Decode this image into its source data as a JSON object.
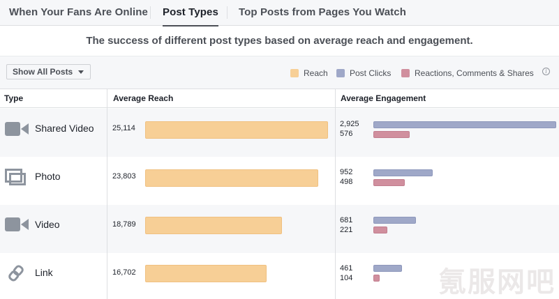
{
  "tabs": [
    {
      "label": "When Your Fans Are Online",
      "active": false
    },
    {
      "label": "Post Types",
      "active": true
    },
    {
      "label": "Top Posts from Pages You Watch",
      "active": false
    }
  ],
  "subtitle": "The success of different post types based on average reach and engagement.",
  "filter": {
    "label": "Show All Posts"
  },
  "legend": [
    {
      "label": "Reach",
      "color": "#f7cf96"
    },
    {
      "label": "Post Clicks",
      "color": "#9fa8c8"
    },
    {
      "label": "Reactions, Comments & Shares",
      "color": "#d08f9e"
    }
  ],
  "columns": {
    "type": "Type",
    "reach": "Average Reach",
    "engagement": "Average Engagement"
  },
  "rows": [
    {
      "type": "Shared Video",
      "icon": "video-camera-icon",
      "reach": 25114,
      "reach_label": "25,114",
      "clicks": 2925,
      "clicks_label": "2,925",
      "reactions": 576,
      "reactions_label": "576"
    },
    {
      "type": "Photo",
      "icon": "photo-icon",
      "reach": 23803,
      "reach_label": "23,803",
      "clicks": 952,
      "clicks_label": "952",
      "reactions": 498,
      "reactions_label": "498"
    },
    {
      "type": "Video",
      "icon": "video-camera-icon",
      "reach": 18789,
      "reach_label": "18,789",
      "clicks": 681,
      "clicks_label": "681",
      "reactions": 221,
      "reactions_label": "221"
    },
    {
      "type": "Link",
      "icon": "link-icon",
      "reach": 16702,
      "reach_label": "16,702",
      "clicks": 461,
      "clicks_label": "461",
      "reactions": 104,
      "reactions_label": "104"
    }
  ],
  "watermark": "氪服网吧"
}
